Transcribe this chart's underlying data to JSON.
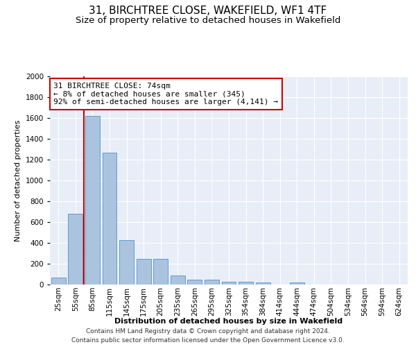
{
  "title": "31, BIRCHTREE CLOSE, WAKEFIELD, WF1 4TF",
  "subtitle": "Size of property relative to detached houses in Wakefield",
  "xlabel": "Distribution of detached houses by size in Wakefield",
  "ylabel": "Number of detached properties",
  "categories": [
    "25sqm",
    "55sqm",
    "85sqm",
    "115sqm",
    "145sqm",
    "175sqm",
    "205sqm",
    "235sqm",
    "265sqm",
    "295sqm",
    "325sqm",
    "354sqm",
    "384sqm",
    "414sqm",
    "444sqm",
    "474sqm",
    "504sqm",
    "534sqm",
    "564sqm",
    "594sqm",
    "624sqm"
  ],
  "values": [
    65,
    680,
    1620,
    1270,
    430,
    250,
    250,
    85,
    45,
    45,
    30,
    25,
    20,
    0,
    20,
    0,
    0,
    0,
    0,
    0,
    0
  ],
  "bar_color": "#aac4df",
  "bar_edge_color": "#6699cc",
  "vline_color": "#cc0000",
  "vline_x": 1.5,
  "annotation_text": "31 BIRCHTREE CLOSE: 74sqm\n← 8% of detached houses are smaller (345)\n92% of semi-detached houses are larger (4,141) →",
  "annotation_box_color": "#ffffff",
  "annotation_box_edge_color": "#cc0000",
  "ylim": [
    0,
    2000
  ],
  "yticks": [
    0,
    200,
    400,
    600,
    800,
    1000,
    1200,
    1400,
    1600,
    1800,
    2000
  ],
  "bg_color": "#e8eef8",
  "footer_line1": "Contains HM Land Registry data © Crown copyright and database right 2024.",
  "footer_line2": "Contains public sector information licensed under the Open Government Licence v3.0.",
  "title_fontsize": 11,
  "subtitle_fontsize": 9.5,
  "axis_label_fontsize": 8,
  "tick_fontsize": 7.5,
  "annotation_fontsize": 8,
  "footer_fontsize": 6.5
}
